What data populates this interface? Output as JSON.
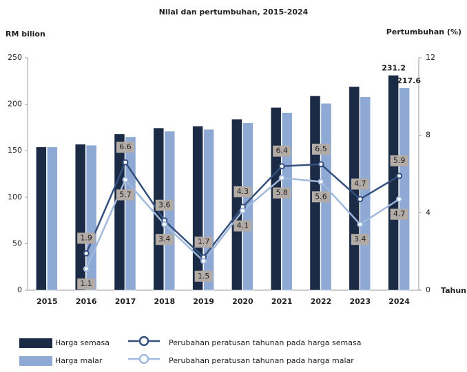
{
  "chart_data": {
    "type": "bar_line",
    "title": "Nilai dan pertumbuhan, 2015-2024",
    "y_label": "RM bilion",
    "y2_label": "Pertumbuhan (%)",
    "x_label": "Tahun",
    "categories": [
      "2015",
      "2016",
      "2017",
      "2018",
      "2019",
      "2020",
      "2021",
      "2022",
      "2023",
      "2024"
    ],
    "ylim": [
      0,
      250
    ],
    "yticks": [
      0,
      50,
      100,
      150,
      200,
      250
    ],
    "y2lim": [
      0,
      12
    ],
    "y2ticks": [
      0,
      4,
      8,
      12
    ],
    "series": [
      {
        "name": "Harga semasa",
        "color": "#1c2b45",
        "values": [
          154,
          157,
          168,
          174.5,
          176.5,
          184,
          196.5,
          209,
          219,
          231.2
        ],
        "value_labels": [
          null,
          null,
          null,
          null,
          null,
          null,
          null,
          null,
          null,
          "231.2"
        ]
      },
      {
        "name": "Harga malar",
        "color": "#8ea9d4",
        "values": [
          154,
          156,
          165,
          171,
          173,
          180,
          191,
          201,
          208,
          217.6
        ],
        "value_labels": [
          null,
          null,
          null,
          null,
          null,
          null,
          null,
          null,
          null,
          "217.6"
        ]
      },
      {
        "name": "Perubahan peratusan tahunan pada harga semasa",
        "color": "#34507e",
        "axis": "y2",
        "values": [
          null,
          1.9,
          6.6,
          3.6,
          1.7,
          4.3,
          6.4,
          6.5,
          4.7,
          5.9
        ]
      },
      {
        "name": "Perubahan peratusan tahunan pada harga malar",
        "color": "#9fb8dc",
        "axis": "y2",
        "values": [
          null,
          1.1,
          5.7,
          3.4,
          1.5,
          4.1,
          5.8,
          5.6,
          3.4,
          4.7
        ]
      }
    ]
  }
}
